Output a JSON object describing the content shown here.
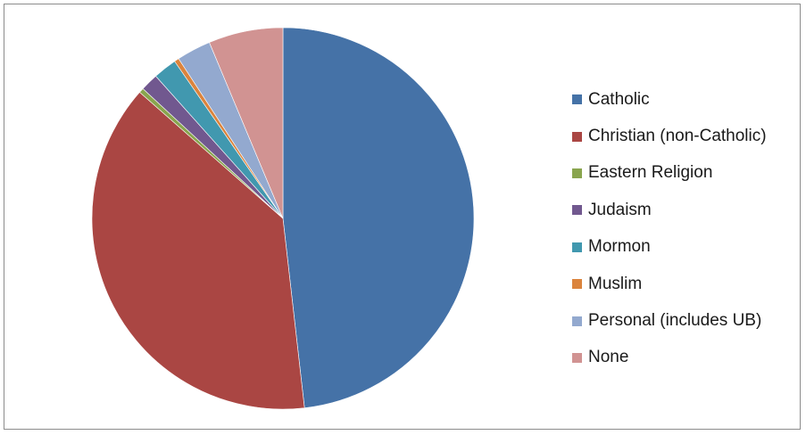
{
  "chart_data": {
    "type": "pie",
    "title": "",
    "categories": [
      "Catholic",
      "Christian (non-Catholic)",
      "Eastern Religion",
      "Judaism",
      "Mormon",
      "Muslim",
      "Personal (includes UB)",
      "None"
    ],
    "values": [
      48.2,
      38.3,
      0.4,
      1.5,
      2.0,
      0.4,
      2.9,
      6.3
    ],
    "colors": [
      "#4572a7",
      "#aa4643",
      "#89a54e",
      "#71588f",
      "#4198af",
      "#db843d",
      "#93a9cf",
      "#d19392"
    ],
    "legend_position": "right",
    "start_angle": "12 o'clock",
    "direction": "clockwise"
  }
}
